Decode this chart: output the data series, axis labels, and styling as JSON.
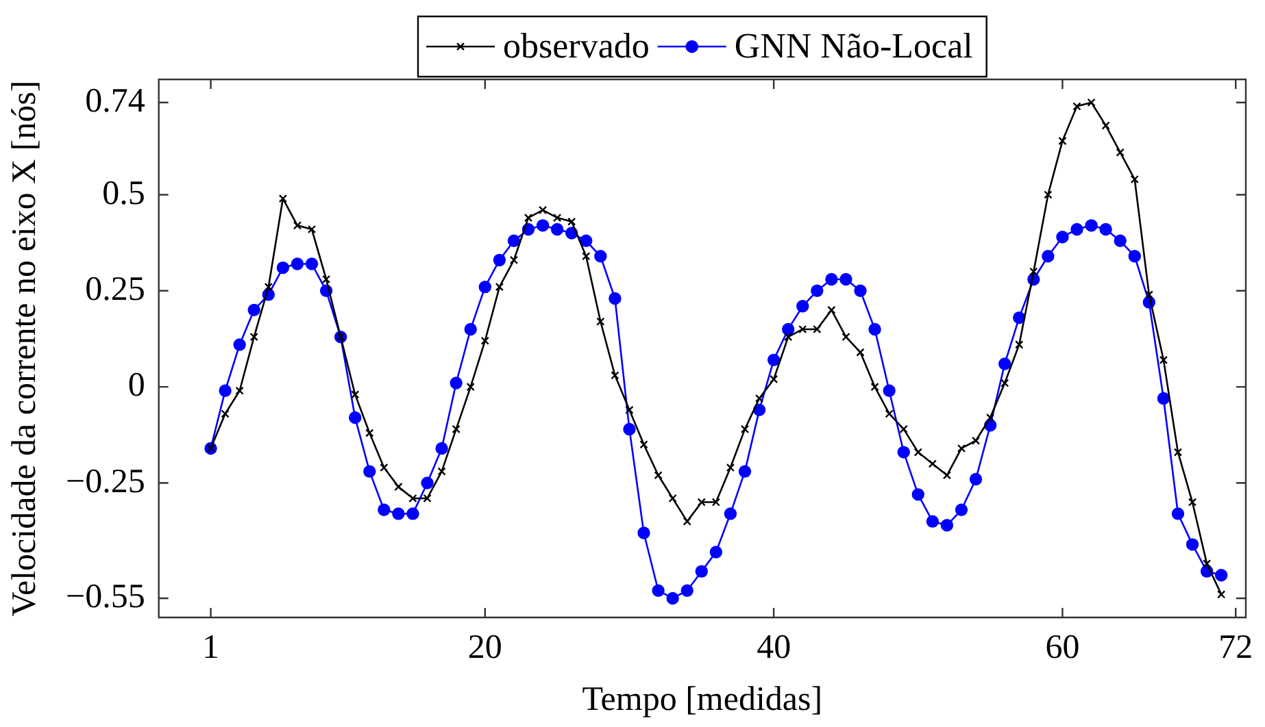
{
  "chart_data": {
    "type": "line",
    "xlabel": "Tempo [medidas]",
    "ylabel": "Velocidade da corrente no eixo X [nós]",
    "x": [
      1,
      2,
      3,
      4,
      5,
      6,
      7,
      8,
      9,
      10,
      11,
      12,
      13,
      14,
      15,
      16,
      17,
      18,
      19,
      20,
      21,
      22,
      23,
      24,
      25,
      26,
      27,
      28,
      29,
      30,
      31,
      32,
      33,
      34,
      35,
      36,
      37,
      38,
      39,
      40,
      41,
      42,
      43,
      44,
      45,
      46,
      47,
      48,
      49,
      50,
      51,
      52,
      53,
      54,
      55,
      56,
      57,
      58,
      59,
      60,
      61,
      62,
      63,
      64,
      65,
      66,
      67,
      68,
      69,
      70,
      71
    ],
    "series": [
      {
        "name": "observado",
        "color": "#000000",
        "marker": "cross",
        "values": [
          -0.16,
          -0.07,
          -0.01,
          0.13,
          0.26,
          0.49,
          0.42,
          0.41,
          0.28,
          0.13,
          -0.02,
          -0.12,
          -0.21,
          -0.26,
          -0.29,
          -0.29,
          -0.22,
          -0.11,
          0.0,
          0.12,
          0.26,
          0.33,
          0.44,
          0.46,
          0.44,
          0.43,
          0.34,
          0.17,
          0.03,
          -0.06,
          -0.15,
          -0.23,
          -0.29,
          -0.35,
          -0.3,
          -0.3,
          -0.21,
          -0.11,
          -0.03,
          0.02,
          0.13,
          0.15,
          0.15,
          0.2,
          0.13,
          0.09,
          0.0,
          -0.07,
          -0.11,
          -0.17,
          -0.2,
          -0.23,
          -0.16,
          -0.14,
          -0.08,
          0.01,
          0.11,
          0.3,
          0.5,
          0.64,
          0.73,
          0.74,
          0.68,
          0.61,
          0.54,
          0.24,
          0.07,
          -0.17,
          -0.3,
          -0.46,
          -0.54
        ]
      },
      {
        "name": "GNN Não-Local",
        "color": "#0000ff",
        "marker": "circle",
        "values": [
          -0.16,
          -0.01,
          0.11,
          0.2,
          0.24,
          0.31,
          0.32,
          0.32,
          0.25,
          0.13,
          -0.08,
          -0.22,
          -0.32,
          -0.33,
          -0.33,
          -0.25,
          -0.16,
          0.01,
          0.15,
          0.26,
          0.33,
          0.38,
          0.41,
          0.42,
          0.41,
          0.4,
          0.38,
          0.34,
          0.23,
          -0.11,
          -0.38,
          -0.53,
          -0.55,
          -0.53,
          -0.48,
          -0.43,
          -0.33,
          -0.22,
          -0.06,
          0.07,
          0.15,
          0.21,
          0.25,
          0.28,
          0.28,
          0.25,
          0.15,
          -0.01,
          -0.17,
          -0.28,
          -0.35,
          -0.36,
          -0.32,
          -0.24,
          -0.1,
          0.06,
          0.18,
          0.28,
          0.34,
          0.39,
          0.41,
          0.42,
          0.41,
          0.38,
          0.34,
          0.22,
          -0.03,
          -0.33,
          -0.41,
          -0.48,
          -0.49
        ]
      }
    ],
    "xlim": [
      -2.6,
      72.7
    ],
    "ylim": [
      -0.6,
      0.8
    ],
    "xticks": [
      1,
      20,
      40,
      60,
      72
    ],
    "yticks": [
      {
        "value": -0.55,
        "label": "−0.55"
      },
      {
        "value": -0.25,
        "label": "−0.25"
      },
      0,
      0.25,
      0.5,
      0.74
    ],
    "legend": "top",
    "grid": false,
    "line_style": "solid"
  }
}
